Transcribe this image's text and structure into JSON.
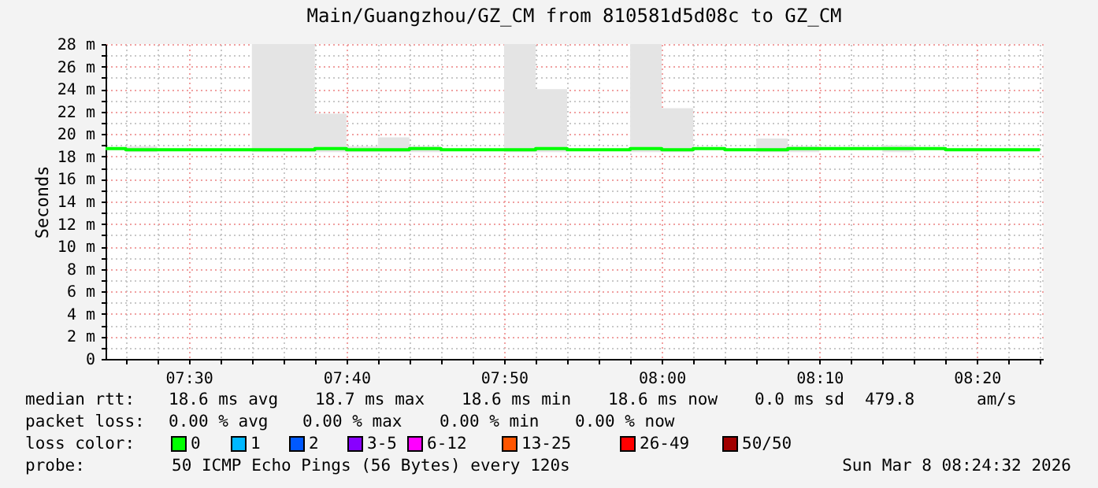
{
  "chart_data": {
    "type": "step",
    "title": "Main/Guangzhou/GZ_CM from 810581d5d08c to GZ_CM",
    "ylabel": "Seconds",
    "x": [
      7.412,
      7.4333,
      7.4667,
      7.5,
      7.5333,
      7.5667,
      7.6,
      7.6333,
      7.6667,
      7.7,
      7.7333,
      7.7667,
      7.8,
      7.8333,
      7.8667,
      7.9,
      7.9333,
      7.9667,
      8.0,
      8.0333,
      8.0667,
      8.1,
      8.1333,
      8.1667,
      8.2,
      8.2333,
      8.2667,
      8.3,
      8.3333,
      8.3667,
      8.4
    ],
    "series": [
      {
        "color": "#00ff00",
        "values": [
          18.7,
          18.6,
          18.6,
          18.6,
          18.6,
          18.6,
          18.6,
          18.7,
          18.6,
          18.6,
          18.7,
          18.6,
          18.6,
          18.6,
          18.7,
          18.6,
          18.6,
          18.7,
          18.6,
          18.7,
          18.6,
          18.6,
          18.7,
          18.7,
          18.7,
          18.7,
          18.7,
          18.6,
          18.6,
          18.6,
          18.6
        ],
        "lower": [
          18.7,
          18.4,
          18.6,
          18.6,
          18.6,
          18.4,
          18.4,
          18.4,
          18.4,
          18.4,
          18.4,
          18.6,
          18.6,
          18.4,
          18.4,
          18.6,
          18.6,
          18.4,
          18.4,
          18.7,
          18.6,
          18.4,
          18.4,
          18.7,
          18.7,
          18.4,
          18.7,
          18.6,
          18.6,
          18.6,
          18.6
        ],
        "upper": [
          18.7,
          18.9,
          18.6,
          18.6,
          18.6,
          28,
          28,
          21.8,
          18.9,
          19.7,
          18.9,
          18.6,
          18.6,
          28,
          24,
          18.6,
          18.6,
          28,
          22.3,
          18.7,
          18.6,
          19.6,
          18.9,
          18.7,
          18.7,
          19.0,
          18.7,
          18.6,
          18.6,
          18.6,
          18.6
        ]
      }
    ],
    "xlim": [
      7.412,
      8.403
    ],
    "xticks": [
      {
        "value": 7.4333,
        "label": null
      },
      {
        "value": 7.4667,
        "label": null
      },
      {
        "value": 7.5,
        "label": "07:30"
      },
      {
        "value": 7.5333,
        "label": null
      },
      {
        "value": 7.5667,
        "label": null
      },
      {
        "value": 7.6,
        "label": null
      },
      {
        "value": 7.6333,
        "label": null
      },
      {
        "value": 7.6667,
        "label": "07:40"
      },
      {
        "value": 7.7,
        "label": null
      },
      {
        "value": 7.7333,
        "label": null
      },
      {
        "value": 7.7667,
        "label": null
      },
      {
        "value": 7.8,
        "label": null
      },
      {
        "value": 7.8333,
        "label": "07:50"
      },
      {
        "value": 7.8667,
        "label": null
      },
      {
        "value": 7.9,
        "label": null
      },
      {
        "value": 7.9333,
        "label": null
      },
      {
        "value": 7.9667,
        "label": null
      },
      {
        "value": 8.0,
        "label": "08:00"
      },
      {
        "value": 8.0333,
        "label": null
      },
      {
        "value": 8.0667,
        "label": null
      },
      {
        "value": 8.1,
        "label": null
      },
      {
        "value": 8.1333,
        "label": null
      },
      {
        "value": 8.1667,
        "label": "08:10"
      },
      {
        "value": 8.2,
        "label": null
      },
      {
        "value": 8.2333,
        "label": null
      },
      {
        "value": 8.2667,
        "label": null
      },
      {
        "value": 8.3,
        "label": null
      },
      {
        "value": 8.3333,
        "label": "08:20"
      },
      {
        "value": 8.3667,
        "label": null
      },
      {
        "value": 8.4,
        "label": null
      }
    ],
    "ylim": [
      0,
      28
    ],
    "yticks": [
      0,
      {
        "value": 1,
        "label": null
      },
      {
        "value": 2,
        "label": "2 m"
      },
      {
        "value": 3,
        "label": null
      },
      {
        "value": 4,
        "label": "4 m"
      },
      {
        "value": 5,
        "label": null
      },
      {
        "value": 6,
        "label": "6 m"
      },
      {
        "value": 7,
        "label": null
      },
      {
        "value": 8,
        "label": "8 m"
      },
      {
        "value": 9,
        "label": null
      },
      {
        "value": 10,
        "label": "10 m"
      },
      {
        "value": 11,
        "label": null
      },
      {
        "value": 12,
        "label": "12 m"
      },
      {
        "value": 13,
        "label": null
      },
      {
        "value": 14,
        "label": "14 m"
      },
      {
        "value": 15,
        "label": null
      },
      {
        "value": 16,
        "label": "16 m"
      },
      {
        "value": 17,
        "label": null
      },
      {
        "value": 18,
        "label": "18 m"
      },
      {
        "value": 19,
        "label": null
      },
      {
        "value": 20,
        "label": "20 m"
      },
      {
        "value": 21,
        "label": null
      },
      {
        "value": 22,
        "label": "22 m"
      },
      {
        "value": 23,
        "label": null
      },
      {
        "value": 24,
        "label": "24 m"
      },
      {
        "value": 25,
        "label": null
      },
      {
        "value": 26,
        "label": "26 m"
      },
      {
        "value": 27,
        "label": null
      },
      {
        "value": 28,
        "label": "28 m"
      }
    ],
    "grid": true,
    "line_style": "solid",
    "marker": "none",
    "annotations": [
      "median rtt:",
      "18.6 ms avg",
      "18.7 ms max",
      "18.6 ms min",
      "18.6 ms now",
      "0.0 ms sd",
      "479.8",
      "am/s",
      "packet loss:",
      "0.00 % avg",
      "0.00 % max",
      "0.00 % min",
      "0.00 % now",
      "loss color:",
      "0",
      "1",
      "2",
      "3-5",
      "6-12",
      "13-25",
      "26-49",
      "50/50",
      "probe:",
      "50 ICMP Echo Pings (56 Bytes) every 120s",
      "Sun Mar  8 08:24:32 2026"
    ]
  }
}
